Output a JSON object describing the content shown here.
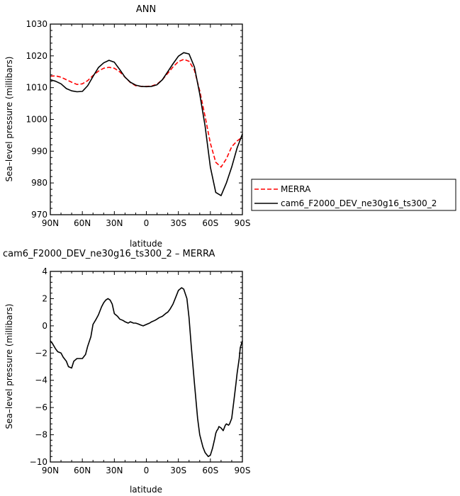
{
  "top_panel": {
    "title": "ANN",
    "xlabel": "latitude",
    "ylabel": "Sea–level pressure (millibars)",
    "x_ticks": [
      "90N",
      "60N",
      "30N",
      "0",
      "30S",
      "60S",
      "90S"
    ],
    "y_ticks": [
      "970",
      "980",
      "990",
      "1000",
      "1010",
      "1020",
      "1030"
    ]
  },
  "bottom_panel": {
    "title": "cam6_F2000_DEV_ne30g16_ts300_2 – MERRA",
    "xlabel": "latitude",
    "ylabel": "Sea–level pressure (millibars)",
    "x_ticks": [
      "90N",
      "60N",
      "30N",
      "0",
      "30S",
      "60S",
      "90S"
    ],
    "y_ticks": [
      "−10",
      "−8",
      "−6",
      "−4",
      "−2",
      "0",
      "2",
      "4"
    ]
  },
  "legend": {
    "items": [
      "MERRA",
      "cam6_F2000_DEV_ne30g16_ts300_2"
    ]
  },
  "chart_data": [
    {
      "type": "line",
      "title": "ANN",
      "xlabel": "latitude",
      "ylabel": "Sea–level pressure (millibars)",
      "xlim": [
        90,
        -90
      ],
      "ylim": [
        970,
        1030
      ],
      "grid": false,
      "legend_position": "right",
      "series": [
        {
          "name": "MERRA",
          "color": "#ff0000",
          "style": "dashed",
          "x": [
            90,
            85,
            80,
            75,
            70,
            65,
            60,
            55,
            50,
            45,
            40,
            35,
            30,
            25,
            20,
            15,
            10,
            5,
            0,
            -5,
            -10,
            -15,
            -20,
            -25,
            -30,
            -35,
            -40,
            -45,
            -50,
            -55,
            -60,
            -65,
            -70,
            -75,
            -80,
            -85,
            -90
          ],
          "y": [
            1013.6,
            1013.7,
            1013.3,
            1012.5,
            1011.7,
            1011.0,
            1011.2,
            1012.2,
            1013.8,
            1015.2,
            1016.1,
            1016.4,
            1016.1,
            1015.0,
            1013.3,
            1011.6,
            1010.6,
            1010.4,
            1010.4,
            1010.5,
            1011.1,
            1012.5,
            1014.5,
            1016.5,
            1018.2,
            1018.9,
            1018.3,
            1015.5,
            1009.0,
            1001.0,
            992.5,
            986.5,
            985.0,
            987.6,
            991.4,
            993.2,
            994.5
          ]
        },
        {
          "name": "cam6_F2000_DEV_ne30g16_ts300_2",
          "color": "#000000",
          "style": "solid",
          "x": [
            90,
            85,
            80,
            75,
            70,
            65,
            60,
            55,
            50,
            45,
            40,
            35,
            30,
            25,
            20,
            15,
            10,
            5,
            0,
            -5,
            -10,
            -15,
            -20,
            -25,
            -30,
            -35,
            -40,
            -45,
            -50,
            -55,
            -60,
            -65,
            -70,
            -75,
            -80,
            -85,
            -90
          ],
          "y": [
            1012.5,
            1012.0,
            1011.2,
            1009.7,
            1009.0,
            1008.7,
            1008.8,
            1010.6,
            1013.5,
            1016.3,
            1017.8,
            1018.6,
            1018.0,
            1015.7,
            1013.3,
            1011.7,
            1010.8,
            1010.4,
            1010.3,
            1010.4,
            1010.9,
            1012.5,
            1015.0,
            1017.5,
            1019.9,
            1021.0,
            1020.6,
            1016.5,
            1008.0,
            998.0,
            985.0,
            977.0,
            976.0,
            980.0,
            985.0,
            991.0,
            995.4
          ]
        }
      ]
    },
    {
      "type": "line",
      "title": "cam6_F2000_DEV_ne30g16_ts300_2 – MERRA",
      "xlabel": "latitude",
      "ylabel": "Sea–level pressure (millibars)",
      "xlim": [
        90,
        -90
      ],
      "ylim": [
        -10,
        4
      ],
      "grid": false,
      "series": [
        {
          "color": "#000000",
          "style": "solid",
          "x": [
            90,
            88,
            85,
            83,
            80,
            78,
            75,
            73,
            70,
            68,
            65,
            62,
            60,
            57,
            55,
            52,
            50,
            47,
            45,
            42,
            40,
            38,
            36,
            34,
            32,
            30,
            27,
            25,
            22,
            20,
            17,
            15,
            12,
            10,
            8,
            5,
            3,
            0,
            -3,
            -5,
            -8,
            -10,
            -12,
            -15,
            -18,
            -20,
            -22,
            -25,
            -28,
            -30,
            -33,
            -35,
            -38,
            -40,
            -42,
            -45,
            -48,
            -50,
            -53,
            -55,
            -58,
            -60,
            -62,
            -64,
            -65,
            -66,
            -67,
            -68,
            -70,
            -72,
            -74,
            -75,
            -77,
            -78,
            -80,
            -82,
            -84,
            -85,
            -87,
            -88,
            -90
          ],
          "y": [
            -1.1,
            -1.3,
            -1.7,
            -1.9,
            -2.0,
            -2.3,
            -2.6,
            -3.0,
            -3.1,
            -2.6,
            -2.4,
            -2.4,
            -2.4,
            -2.1,
            -1.5,
            -0.8,
            0.1,
            0.5,
            0.8,
            1.4,
            1.7,
            1.9,
            2.0,
            1.9,
            1.6,
            0.9,
            0.7,
            0.5,
            0.4,
            0.3,
            0.2,
            0.3,
            0.2,
            0.2,
            0.15,
            0.05,
            0.0,
            0.1,
            0.2,
            0.3,
            0.4,
            0.5,
            0.6,
            0.7,
            0.9,
            1.0,
            1.2,
            1.6,
            2.2,
            2.6,
            2.8,
            2.7,
            2.0,
            0.6,
            -1.4,
            -4.2,
            -6.8,
            -8.0,
            -8.9,
            -9.3,
            -9.6,
            -9.5,
            -9.0,
            -8.3,
            -7.9,
            -7.7,
            -7.6,
            -7.4,
            -7.5,
            -7.7,
            -7.3,
            -7.2,
            -7.3,
            -7.2,
            -6.8,
            -5.5,
            -4.2,
            -3.5,
            -2.4,
            -1.6,
            -1.1
          ]
        }
      ]
    }
  ]
}
